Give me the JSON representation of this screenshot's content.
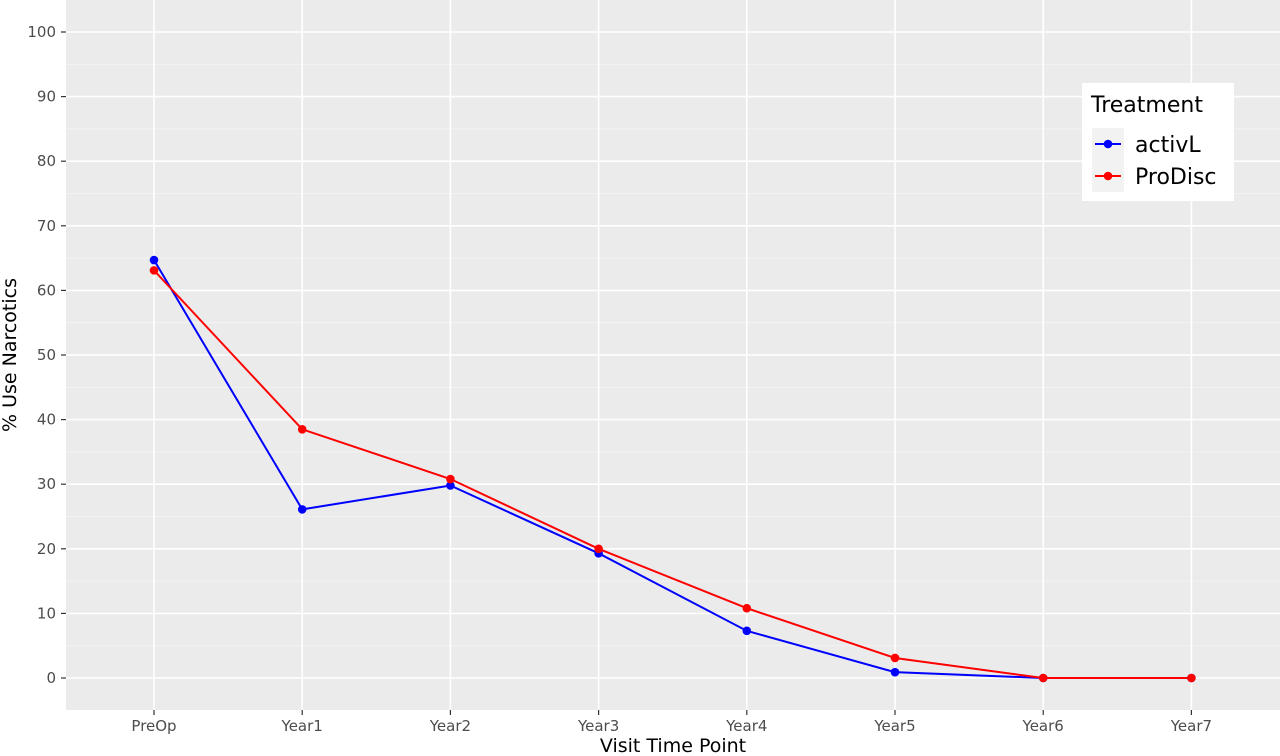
{
  "chart_data": {
    "type": "line",
    "title": "",
    "xlabel": "Visit Time Point",
    "ylabel": "% Use Narcotics",
    "categories": [
      "PreOp",
      "Year1",
      "Year2",
      "Year3",
      "Year4",
      "Year5",
      "Year6",
      "Year7"
    ],
    "y_ticks": [
      0,
      10,
      20,
      30,
      40,
      50,
      60,
      70,
      80,
      90,
      100
    ],
    "ylim": [
      -5,
      105
    ],
    "grid": true,
    "legend": {
      "title": "Treatment",
      "position": "right"
    },
    "series": [
      {
        "name": "activL",
        "color": "#0000ff",
        "values": [
          64.7,
          26.1,
          29.8,
          19.3,
          7.3,
          0.9,
          0.0,
          0.0
        ]
      },
      {
        "name": "ProDisc",
        "color": "#ff0000",
        "values": [
          63.1,
          38.5,
          30.8,
          20.0,
          10.8,
          3.1,
          0.0,
          0.0
        ]
      }
    ]
  }
}
